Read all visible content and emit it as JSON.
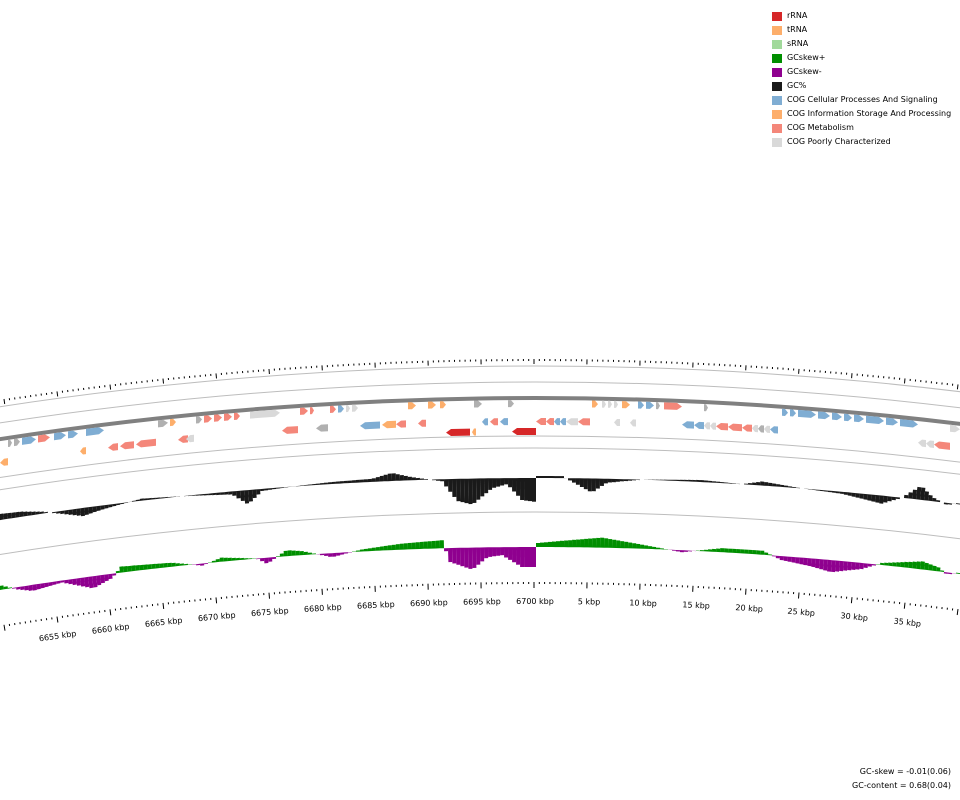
{
  "legend": [
    {
      "label": "rRNA",
      "color": "#d62728"
    },
    {
      "label": "tRNA",
      "color": "#fdae6b"
    },
    {
      "label": "sRNA",
      "color": "#a1d99b"
    },
    {
      "label": "GCskew+",
      "color": "#008f00"
    },
    {
      "label": "GCskew-",
      "color": "#8f008f"
    },
    {
      "label": "GC%",
      "color": "#1a1a1a"
    },
    {
      "label": "COG Cellular Processes And Signaling",
      "color": "#7fadd3"
    },
    {
      "label": "COG Information Storage And Processing",
      "color": "#fdae6b"
    },
    {
      "label": "COG Metabolism",
      "color": "#f4877a"
    },
    {
      "label": "COG Poorly Characterized",
      "color": "#d9d9d9"
    }
  ],
  "ticks": {
    "labels": [
      "6655 kbp",
      "6660 kbp",
      "6665 kbp",
      "6670 kbp",
      "6675 kbp",
      "6680 kbp",
      "6685 kbp",
      "6690 kbp",
      "6695 kbp",
      "6700 kbp",
      "5 kbp",
      "10 kbp",
      "15 kbp",
      "20 kbp",
      "25 kbp",
      "30 kbp",
      "35 kbp"
    ]
  },
  "stats": {
    "gc_skew": "GC-skew = -0.01(0.06)",
    "gc_content": "GC-content = 0.68(0.04)"
  },
  "colors": {
    "gc": "#1a1a1a",
    "skew_pos": "#008f00",
    "skew_neg": "#8f008f",
    "axis": "#808080",
    "ring": "#bdbdbd",
    "grey": "#b0b0b0"
  }
}
